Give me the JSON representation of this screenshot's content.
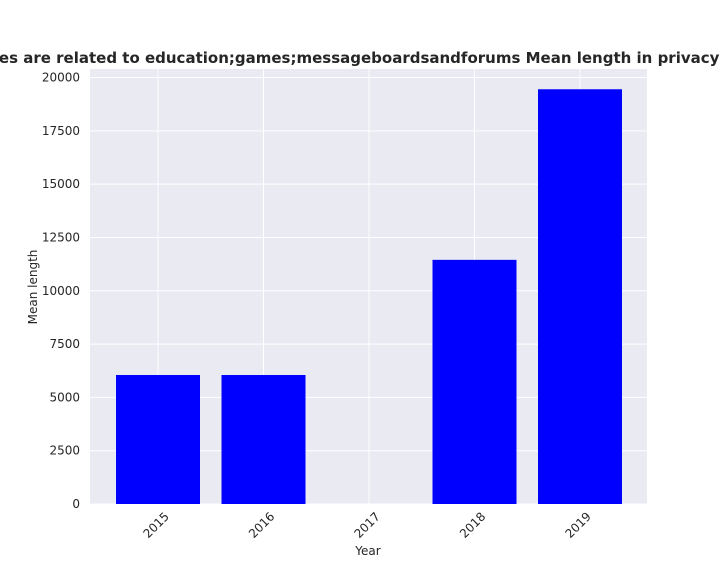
{
  "chart_data": {
    "type": "bar",
    "title": "egories are related to education;games;messageboardsandforums Mean length in privacy polic",
    "xlabel": "Year",
    "ylabel": "Mean length",
    "categories": [
      "2015",
      "2016",
      "2017",
      "2018",
      "2019"
    ],
    "values": [
      6050,
      6050,
      0,
      11450,
      19450
    ],
    "ylim": [
      0,
      20400
    ],
    "yticks": [
      0,
      2500,
      5000,
      7500,
      10000,
      12500,
      15000,
      17500,
      20000
    ],
    "bar_color": "#0000ff",
    "background_color": "#eaeaf2",
    "grid_color": "#ffffff",
    "grid": true,
    "legend": false
  }
}
